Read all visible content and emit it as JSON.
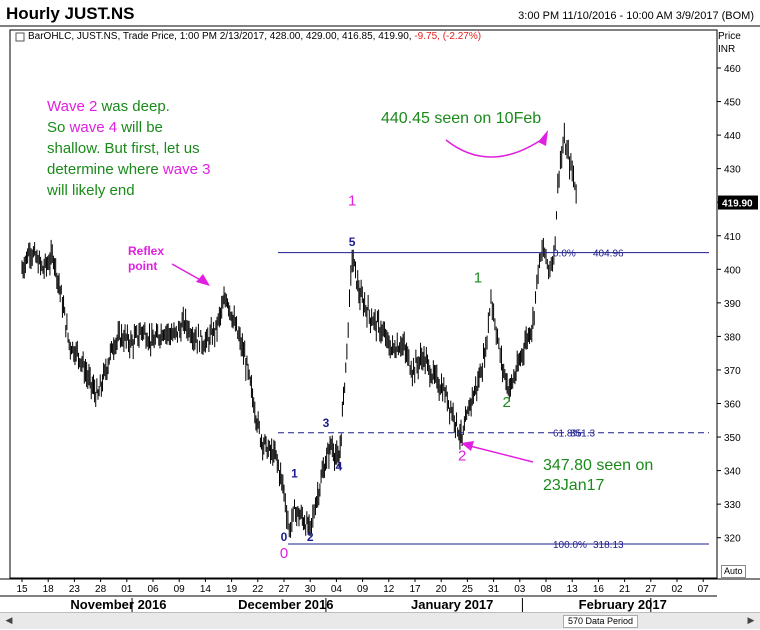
{
  "title": "Hourly JUST.NS",
  "time_range": "3:00 PM 11/10/2016 - 10:00 AM 3/9/2017 (BOM)",
  "legend_line": "BarOHLC, JUST.NS, Trade Price, 1:00 PM 2/13/2017, 428.00, 429.00, 416.85, 419.90, ",
  "legend_change": "-9.75, (-2.27%)",
  "colors": {
    "green": "#1a8a1a",
    "magenta": "#e020e0",
    "navy": "#1c1c8c",
    "bars": "#000000",
    "change": "#e02020"
  },
  "annotations": {
    "wave_text": [
      [
        {
          "t": "Wave 2",
          "c": "magenta"
        },
        {
          "t": " was deep.",
          "c": "green"
        }
      ],
      [
        {
          "t": "So ",
          "c": "green"
        },
        {
          "t": "wave 4",
          "c": "magenta"
        },
        {
          "t": " will be",
          "c": "green"
        }
      ],
      [
        {
          "t": "shallow. But first, let us",
          "c": "green"
        }
      ],
      [
        {
          "t": "determine where ",
          "c": "green"
        },
        {
          "t": "wave 3",
          "c": "magenta"
        }
      ],
      [
        {
          "t": "will likely end",
          "c": "green"
        }
      ]
    ],
    "reflex_line1": "Reflex",
    "reflex_line2": "point",
    "high_note": "440.45 seen on 10Feb",
    "low_note_line1": "347.80 seen on",
    "low_note_line2": "23Jan17"
  },
  "scrollbar": {
    "data_period": "570 Data Period",
    "auto": "Auto"
  },
  "chart_data": {
    "type": "ohlc",
    "ylabel": "Price INR",
    "ylim": [
      310,
      470
    ],
    "yticks": [
      320,
      330,
      340,
      350,
      360,
      370,
      380,
      390,
      400,
      410,
      420,
      430,
      440,
      450,
      460
    ],
    "last_price": "419.90",
    "x_tick_labels": [
      "15",
      "18",
      "23",
      "28",
      "01",
      "06",
      "09",
      "14",
      "19",
      "22",
      "27",
      "30",
      "04",
      "09",
      "12",
      "17",
      "20",
      "25",
      "31",
      "03",
      "08",
      "13",
      "16",
      "21",
      "27",
      "02",
      "07"
    ],
    "months": [
      "November 2016",
      "December 2016",
      "January 2017",
      "February 2017"
    ],
    "fib_levels": [
      {
        "label": "0.0%",
        "value": "404.96",
        "price": 404.96,
        "style": "solid"
      },
      {
        "label": "61.8%",
        "value": "351.3",
        "price": 351.3,
        "style": "dashed"
      },
      {
        "label": "100.0%",
        "value": "318.13",
        "price": 318.13,
        "style": "solid"
      }
    ],
    "wave_labels": [
      {
        "text": "0",
        "color": "magenta",
        "tick": 10,
        "price": 314
      },
      {
        "text": "0",
        "color": "navy",
        "tick": 10,
        "price": 319
      },
      {
        "text": "1",
        "color": "navy",
        "tick": 10.4,
        "price": 338
      },
      {
        "text": "2",
        "color": "navy",
        "tick": 11,
        "price": 319
      },
      {
        "text": "3",
        "color": "navy",
        "tick": 11.6,
        "price": 353
      },
      {
        "text": "4",
        "color": "navy",
        "tick": 12.1,
        "price": 340
      },
      {
        "text": "5",
        "color": "navy",
        "tick": 12.6,
        "price": 407
      },
      {
        "text": "1",
        "color": "magenta",
        "tick": 12.6,
        "price": 419
      },
      {
        "text": "2",
        "color": "magenta",
        "tick": 16.8,
        "price": 343
      },
      {
        "text": "1",
        "color": "green",
        "tick": 17.4,
        "price": 396
      },
      {
        "text": "2",
        "color": "green",
        "tick": 18.5,
        "price": 359
      }
    ],
    "price_path": [
      [
        0,
        400
      ],
      [
        0.3,
        406
      ],
      [
        0.8,
        400
      ],
      [
        1.2,
        404
      ],
      [
        1.5,
        392
      ],
      [
        1.8,
        378
      ],
      [
        2.2,
        374
      ],
      [
        2.6,
        366
      ],
      [
        2.9,
        362
      ],
      [
        3.2,
        370
      ],
      [
        3.5,
        378
      ],
      [
        3.8,
        380
      ],
      [
        4.2,
        378
      ],
      [
        4.6,
        382
      ],
      [
        5,
        378
      ],
      [
        5.4,
        382
      ],
      [
        5.8,
        380
      ],
      [
        6.2,
        384
      ],
      [
        6.6,
        380
      ],
      [
        7,
        378
      ],
      [
        7.4,
        382
      ],
      [
        7.8,
        392
      ],
      [
        8.1,
        384
      ],
      [
        8.5,
        374
      ],
      [
        8.8,
        362
      ],
      [
        9.1,
        350
      ],
      [
        9.4,
        346
      ],
      [
        9.7,
        344
      ],
      [
        10,
        334
      ],
      [
        10.2,
        322
      ],
      [
        10.4,
        328
      ],
      [
        10.7,
        326
      ],
      [
        11,
        322
      ],
      [
        11.2,
        330
      ],
      [
        11.5,
        340
      ],
      [
        11.8,
        348
      ],
      [
        12.1,
        342
      ],
      [
        12.4,
        376
      ],
      [
        12.6,
        404
      ],
      [
        12.9,
        392
      ],
      [
        13.3,
        386
      ],
      [
        13.7,
        382
      ],
      [
        14.1,
        376
      ],
      [
        14.5,
        378
      ],
      [
        14.9,
        370
      ],
      [
        15.3,
        374
      ],
      [
        15.7,
        368
      ],
      [
        16.1,
        364
      ],
      [
        16.5,
        356
      ],
      [
        16.8,
        349
      ],
      [
        17.1,
        360
      ],
      [
        17.4,
        366
      ],
      [
        17.7,
        376
      ],
      [
        17.9,
        392
      ],
      [
        18.1,
        382
      ],
      [
        18.3,
        372
      ],
      [
        18.6,
        364
      ],
      [
        18.9,
        370
      ],
      [
        19.2,
        378
      ],
      [
        19.5,
        384
      ],
      [
        19.7,
        400
      ],
      [
        19.9,
        406
      ],
      [
        20.1,
        400
      ],
      [
        20.3,
        404
      ],
      [
        20.5,
        430
      ],
      [
        20.7,
        438
      ],
      [
        20.9,
        432
      ],
      [
        21.1,
        426
      ],
      [
        21.2,
        420
      ]
    ]
  }
}
